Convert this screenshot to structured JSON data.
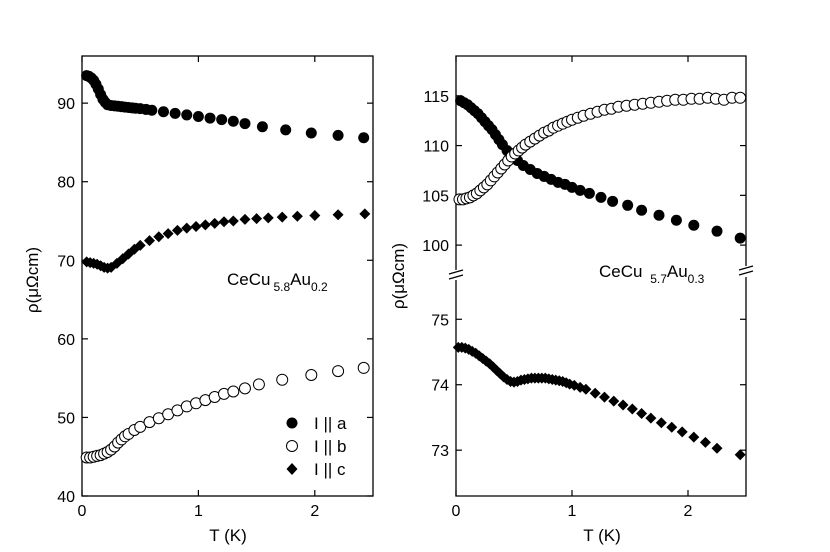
{
  "chart_data": [
    {
      "type": "scatter",
      "panel": "left",
      "annotation": {
        "base": "CeCu",
        "sub1": "5.8",
        "mid": "Au",
        "sub2": "0.2"
      },
      "xlabel": "T (K)",
      "ylabel": "ρ(μΩcm)",
      "xlim": [
        0,
        2.5
      ],
      "ylim": [
        40,
        96
      ],
      "xticks": [
        0,
        1,
        2
      ],
      "yticks": [
        40,
        50,
        60,
        70,
        80,
        90
      ],
      "legend": {
        "position": "bottom-right",
        "entries": [
          {
            "label": "I || a",
            "marker": "filled-circle"
          },
          {
            "label": "I || b",
            "marker": "open-circle"
          },
          {
            "label": "I || c",
            "marker": "filled-diamond"
          }
        ]
      },
      "series": [
        {
          "name": "I || a",
          "marker": "filled-circle",
          "x": [
            0.04,
            0.06,
            0.08,
            0.1,
            0.12,
            0.14,
            0.16,
            0.18,
            0.2,
            0.22,
            0.25,
            0.28,
            0.31,
            0.34,
            0.37,
            0.4,
            0.43,
            0.46,
            0.5,
            0.55,
            0.6,
            0.7,
            0.8,
            0.9,
            1.0,
            1.1,
            1.2,
            1.3,
            1.4,
            1.55,
            1.75,
            1.97,
            2.2,
            2.42
          ],
          "y": [
            93.5,
            93.4,
            93.2,
            92.9,
            92.4,
            91.8,
            91.1,
            90.5,
            90.1,
            89.8,
            89.7,
            89.65,
            89.6,
            89.55,
            89.5,
            89.45,
            89.4,
            89.35,
            89.3,
            89.2,
            89.1,
            88.9,
            88.7,
            88.5,
            88.3,
            88.1,
            87.9,
            87.7,
            87.4,
            87.0,
            86.6,
            86.2,
            85.9,
            85.6
          ]
        },
        {
          "name": "I || b",
          "marker": "open-circle",
          "x": [
            0.04,
            0.07,
            0.1,
            0.13,
            0.16,
            0.19,
            0.22,
            0.25,
            0.28,
            0.31,
            0.34,
            0.37,
            0.4,
            0.45,
            0.5,
            0.58,
            0.66,
            0.74,
            0.82,
            0.9,
            0.98,
            1.06,
            1.14,
            1.22,
            1.3,
            1.4,
            1.52,
            1.72,
            1.97,
            2.2,
            2.42
          ],
          "y": [
            44.9,
            44.9,
            45.0,
            45.1,
            45.2,
            45.4,
            45.6,
            45.9,
            46.3,
            46.8,
            47.2,
            47.6,
            47.9,
            48.4,
            48.8,
            49.4,
            49.9,
            50.4,
            50.9,
            51.4,
            51.8,
            52.2,
            52.6,
            53.0,
            53.3,
            53.7,
            54.2,
            54.8,
            55.4,
            55.9,
            56.3
          ]
        },
        {
          "name": "I || c",
          "marker": "filled-diamond",
          "x": [
            0.04,
            0.07,
            0.1,
            0.13,
            0.16,
            0.19,
            0.22,
            0.25,
            0.3,
            0.35,
            0.4,
            0.45,
            0.5,
            0.58,
            0.66,
            0.74,
            0.82,
            0.9,
            0.98,
            1.06,
            1.14,
            1.22,
            1.3,
            1.4,
            1.5,
            1.6,
            1.72,
            1.85,
            2.0,
            2.2,
            2.43
          ],
          "y": [
            69.8,
            69.7,
            69.6,
            69.5,
            69.3,
            69.1,
            69.0,
            69.1,
            69.6,
            70.2,
            70.8,
            71.4,
            71.9,
            72.5,
            73.0,
            73.4,
            73.8,
            74.1,
            74.3,
            74.5,
            74.7,
            74.9,
            75.0,
            75.2,
            75.3,
            75.4,
            75.5,
            75.6,
            75.7,
            75.8,
            75.9
          ]
        }
      ]
    },
    {
      "type": "scatter",
      "panel": "right",
      "broken_axis": true,
      "annotation": {
        "base": "CeCu ",
        "sub1": "5.7",
        "mid": "Au",
        "sub2": "0.3"
      },
      "xlabel": "T (K)",
      "ylabel": "ρ(μΩcm)",
      "xlim": [
        0,
        2.5
      ],
      "upper": {
        "ylim": [
          97.5,
          119
        ],
        "yticks": [
          100,
          105,
          110,
          115
        ],
        "series": [
          {
            "name": "I || a",
            "marker": "filled-circle",
            "x": [
              0.04,
              0.07,
              0.1,
              0.13,
              0.16,
              0.19,
              0.22,
              0.25,
              0.28,
              0.31,
              0.34,
              0.37,
              0.4,
              0.44,
              0.48,
              0.53,
              0.58,
              0.64,
              0.7,
              0.76,
              0.82,
              0.88,
              0.94,
              1.0,
              1.07,
              1.15,
              1.25,
              1.35,
              1.48,
              1.6,
              1.75,
              1.9,
              2.05,
              2.25,
              2.45
            ],
            "y": [
              114.5,
              114.3,
              114.1,
              113.8,
              113.5,
              113.2,
              112.8,
              112.4,
              112.0,
              111.6,
              111.1,
              110.6,
              110.1,
              109.5,
              109.0,
              108.5,
              108.0,
              107.6,
              107.2,
              106.9,
              106.6,
              106.3,
              106.1,
              105.8,
              105.5,
              105.2,
              104.8,
              104.4,
              104.0,
              103.5,
              103.0,
              102.5,
              102.0,
              101.4,
              100.7
            ]
          },
          {
            "name": "I || b",
            "marker": "open-circle",
            "x": [
              0.03,
              0.06,
              0.09,
              0.12,
              0.15,
              0.18,
              0.21,
              0.24,
              0.27,
              0.3,
              0.33,
              0.36,
              0.39,
              0.42,
              0.45,
              0.48,
              0.51,
              0.54,
              0.57,
              0.6,
              0.64,
              0.68,
              0.72,
              0.76,
              0.8,
              0.84,
              0.88,
              0.92,
              0.96,
              1.0,
              1.05,
              1.1,
              1.16,
              1.22,
              1.28,
              1.34,
              1.4,
              1.47,
              1.54,
              1.61,
              1.68,
              1.75,
              1.82,
              1.89,
              1.96,
              2.03,
              2.1,
              2.17,
              2.24,
              2.31,
              2.38,
              2.45
            ],
            "y": [
              104.6,
              104.6,
              104.7,
              104.8,
              105.0,
              105.2,
              105.5,
              105.8,
              106.1,
              106.5,
              106.9,
              107.3,
              107.7,
              108.1,
              108.5,
              108.9,
              109.2,
              109.5,
              109.8,
              110.1,
              110.4,
              110.7,
              111.0,
              111.3,
              111.5,
              111.8,
              112.0,
              112.2,
              112.4,
              112.6,
              112.8,
              113.0,
              113.2,
              113.4,
              113.6,
              113.7,
              113.9,
              114.0,
              114.1,
              114.2,
              114.3,
              114.4,
              114.5,
              114.6,
              114.6,
              114.7,
              114.7,
              114.8,
              114.7,
              114.6,
              114.8,
              114.8
            ]
          }
        ]
      },
      "lower": {
        "ylim": [
          72.3,
          75.6
        ],
        "yticks": [
          73,
          74,
          75
        ],
        "series": [
          {
            "name": "I || c",
            "marker": "filled-diamond",
            "x": [
              0.02,
              0.05,
              0.08,
              0.11,
              0.14,
              0.17,
              0.2,
              0.23,
              0.26,
              0.29,
              0.32,
              0.35,
              0.38,
              0.41,
              0.44,
              0.47,
              0.5,
              0.53,
              0.56,
              0.59,
              0.62,
              0.65,
              0.68,
              0.71,
              0.74,
              0.77,
              0.8,
              0.83,
              0.86,
              0.89,
              0.92,
              0.95,
              0.98,
              1.02,
              1.07,
              1.12,
              1.2,
              1.28,
              1.36,
              1.44,
              1.52,
              1.6,
              1.68,
              1.77,
              1.86,
              1.95,
              2.05,
              2.15,
              2.25,
              2.45
            ],
            "y": [
              74.57,
              74.57,
              74.56,
              74.54,
              74.51,
              74.48,
              74.44,
              74.4,
              74.36,
              74.32,
              74.27,
              74.22,
              74.17,
              74.12,
              74.08,
              74.05,
              74.04,
              74.05,
              74.07,
              74.08,
              74.09,
              74.1,
              74.1,
              74.1,
              74.1,
              74.1,
              74.09,
              74.08,
              74.07,
              74.06,
              74.05,
              74.03,
              74.01,
              73.99,
              73.96,
              73.93,
              73.87,
              73.81,
              73.75,
              73.69,
              73.63,
              73.56,
              73.49,
              73.42,
              73.35,
              73.28,
              73.2,
              73.12,
              73.03,
              72.93
            ]
          }
        ]
      }
    }
  ]
}
